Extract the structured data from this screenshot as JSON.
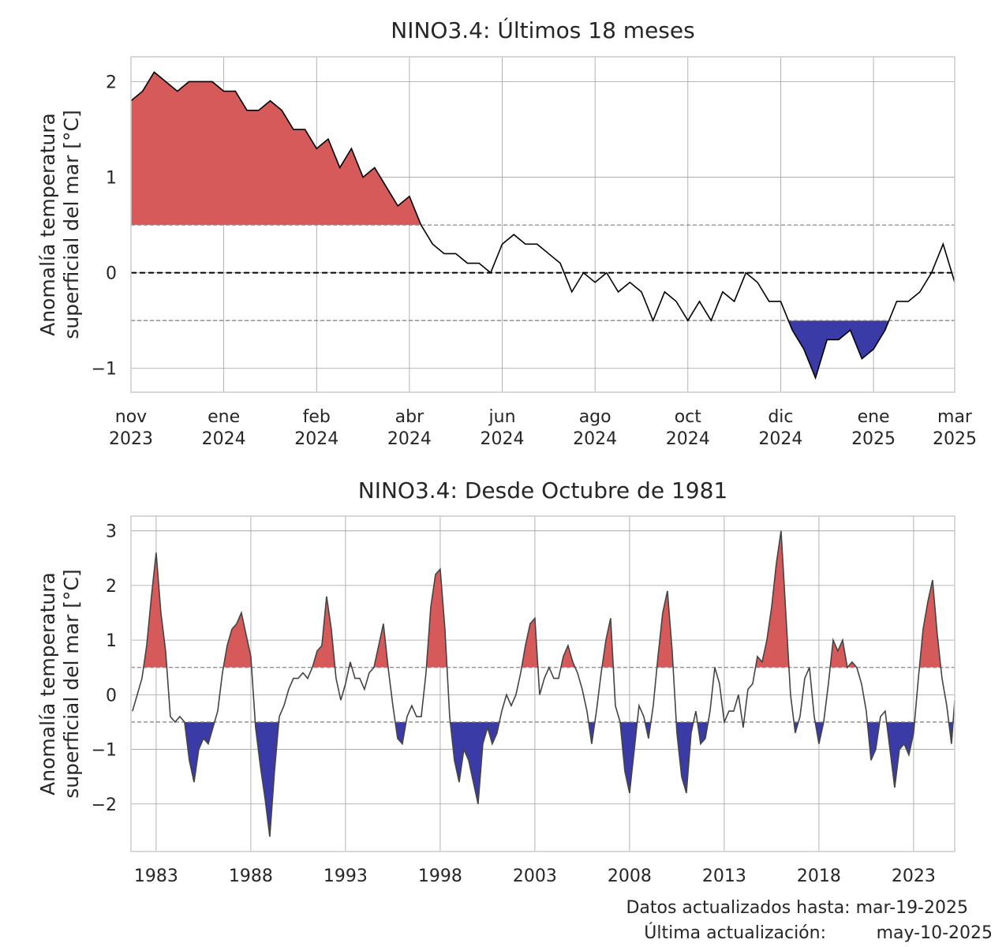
{
  "chart_data": [
    {
      "type": "line",
      "title": "NINO3.4: Últimos 18 meses",
      "ylabel": [
        "Anomalía temperatura",
        "superficial del mar [°C]"
      ],
      "x": [
        0,
        0.125,
        0.25,
        0.375,
        0.5,
        0.625,
        0.75,
        0.875,
        1,
        1.125,
        1.25,
        1.375,
        1.5,
        1.625,
        1.75,
        1.875,
        2,
        2.125,
        2.25,
        2.375,
        2.5,
        2.625,
        2.75,
        2.875,
        3,
        3.125,
        3.25,
        3.375,
        3.5,
        3.625,
        3.75,
        3.875,
        4,
        4.125,
        4.25,
        4.375,
        4.5,
        4.625,
        4.75,
        4.875,
        5,
        5.125,
        5.25,
        5.375,
        5.5,
        5.625,
        5.75,
        5.875,
        6,
        6.125,
        6.25,
        6.375,
        6.5,
        6.625,
        6.75,
        6.875,
        7,
        7.125,
        7.25,
        7.375,
        7.5,
        7.625,
        7.75,
        7.875,
        8,
        8.125,
        8.25,
        8.375,
        8.5,
        8.625,
        8.75,
        8.875
      ],
      "series": [
        {
          "color": "#000000",
          "values": [
            1.8,
            1.9,
            2.1,
            2.0,
            1.9,
            2.0,
            2.0,
            2.0,
            1.9,
            1.9,
            1.7,
            1.7,
            1.8,
            1.7,
            1.5,
            1.5,
            1.3,
            1.4,
            1.1,
            1.3,
            1.0,
            1.1,
            0.9,
            0.7,
            0.8,
            0.5,
            0.3,
            0.2,
            0.2,
            0.1,
            0.1,
            0.0,
            0.3,
            0.4,
            0.3,
            0.3,
            0.2,
            0.1,
            -0.2,
            0.0,
            -0.1,
            0.0,
            -0.2,
            -0.1,
            -0.2,
            -0.5,
            -0.2,
            -0.3,
            -0.5,
            -0.3,
            -0.5,
            -0.2,
            -0.3,
            0.0,
            -0.1,
            -0.3,
            -0.3,
            -0.6,
            -0.8,
            -1.1,
            -0.7,
            -0.7,
            -0.6,
            -0.9,
            -0.8,
            -0.6,
            -0.3,
            -0.3,
            -0.2,
            0.0,
            0.3,
            -0.1
          ]
        }
      ],
      "fills": [
        {
          "threshold": 0.5,
          "side": "above",
          "color": "#d65a5a"
        },
        {
          "threshold": -0.5,
          "side": "below",
          "color": "#3b3ba8"
        }
      ],
      "hlines": [
        {
          "value": 0.5,
          "color": "#888888"
        },
        {
          "value": -0.5,
          "color": "#888888"
        },
        {
          "value": 0,
          "color": "#000000"
        }
      ],
      "xlim": [
        0,
        8.875
      ],
      "xticks": [
        {
          "value": 0,
          "label": "nov 2023"
        },
        {
          "value": 1,
          "label": "ene 2024"
        },
        {
          "value": 2,
          "label": "feb 2024"
        },
        {
          "value": 3,
          "label": "abr 2024"
        },
        {
          "value": 4,
          "label": "jun 2024"
        },
        {
          "value": 5,
          "label": "ago 2024"
        },
        {
          "value": 6,
          "label": "oct 2024"
        },
        {
          "value": 7,
          "label": "dic 2024"
        },
        {
          "value": 8,
          "label": "ene 2025"
        },
        {
          "value": 8.875,
          "label": "mar 2025"
        }
      ],
      "ylim": [
        -1.25,
        2.26
      ],
      "yticks": [
        {
          "value": -1,
          "label": "−1"
        },
        0,
        1,
        2
      ],
      "grid": true
    },
    {
      "type": "line",
      "title": "NINO3.4: Desde Octubre de 1981",
      "ylabel": [
        "Anomalía temperatura",
        "superficial del mar [°C]"
      ],
      "x": [
        1981.75,
        1982,
        1982.25,
        1982.5,
        1982.75,
        1983,
        1983.25,
        1983.5,
        1983.75,
        1984,
        1984.25,
        1984.5,
        1984.75,
        1985,
        1985.25,
        1985.5,
        1985.75,
        1986,
        1986.25,
        1986.5,
        1986.75,
        1987,
        1987.25,
        1987.5,
        1987.75,
        1988,
        1988.25,
        1988.5,
        1988.75,
        1989,
        1989.25,
        1989.5,
        1989.75,
        1990,
        1990.25,
        1990.5,
        1990.75,
        1991,
        1991.25,
        1991.5,
        1991.75,
        1992,
        1992.25,
        1992.5,
        1992.75,
        1993,
        1993.25,
        1993.5,
        1993.75,
        1994,
        1994.25,
        1994.5,
        1994.75,
        1995,
        1995.25,
        1995.5,
        1995.75,
        1996,
        1996.25,
        1996.5,
        1996.75,
        1997,
        1997.25,
        1997.5,
        1997.75,
        1998,
        1998.25,
        1998.5,
        1998.75,
        1999,
        1999.25,
        1999.5,
        1999.75,
        2000,
        2000.25,
        2000.5,
        2000.75,
        2001,
        2001.25,
        2001.5,
        2001.75,
        2002,
        2002.25,
        2002.5,
        2002.75,
        2003,
        2003.25,
        2003.5,
        2003.75,
        2004,
        2004.25,
        2004.5,
        2004.75,
        2005,
        2005.25,
        2005.5,
        2005.75,
        2006,
        2006.25,
        2006.5,
        2006.75,
        2007,
        2007.25,
        2007.5,
        2007.75,
        2008,
        2008.25,
        2008.5,
        2008.75,
        2009,
        2009.25,
        2009.5,
        2009.75,
        2010,
        2010.25,
        2010.5,
        2010.75,
        2011,
        2011.25,
        2011.5,
        2011.75,
        2012,
        2012.25,
        2012.5,
        2012.75,
        2013,
        2013.25,
        2013.5,
        2013.75,
        2014,
        2014.25,
        2014.5,
        2014.75,
        2015,
        2015.25,
        2015.5,
        2015.75,
        2016,
        2016.25,
        2016.5,
        2016.75,
        2017,
        2017.25,
        2017.5,
        2017.75,
        2018,
        2018.25,
        2018.5,
        2018.75,
        2019,
        2019.25,
        2019.5,
        2019.75,
        2020,
        2020.25,
        2020.5,
        2020.75,
        2021,
        2021.25,
        2021.5,
        2021.75,
        2022,
        2022.25,
        2022.5,
        2022.75,
        2023,
        2023.25,
        2023.5,
        2023.75,
        2024,
        2024.25,
        2024.5,
        2024.75,
        2025,
        2025.17
      ],
      "series": [
        {
          "color": "#444444",
          "values": [
            -0.3,
            0.0,
            0.3,
            0.9,
            1.8,
            2.6,
            1.5,
            0.8,
            -0.4,
            -0.5,
            -0.4,
            -0.5,
            -1.2,
            -1.6,
            -1.0,
            -0.8,
            -0.9,
            -0.6,
            -0.3,
            0.4,
            0.9,
            1.2,
            1.3,
            1.5,
            1.1,
            0.7,
            -0.6,
            -1.3,
            -1.9,
            -2.6,
            -1.4,
            -0.4,
            -0.2,
            0.1,
            0.3,
            0.3,
            0.4,
            0.3,
            0.5,
            0.8,
            0.9,
            1.8,
            1.2,
            0.3,
            -0.1,
            0.2,
            0.6,
            0.3,
            0.3,
            0.1,
            0.4,
            0.5,
            0.9,
            1.3,
            0.5,
            -0.2,
            -0.8,
            -0.9,
            -0.4,
            -0.2,
            -0.4,
            -0.4,
            0.4,
            1.6,
            2.2,
            2.3,
            1.2,
            -0.4,
            -1.2,
            -1.6,
            -1.0,
            -1.2,
            -1.6,
            -2.0,
            -0.9,
            -0.6,
            -0.9,
            -0.7,
            -0.3,
            0.0,
            -0.2,
            0.0,
            0.4,
            0.9,
            1.3,
            1.4,
            0.0,
            0.3,
            0.5,
            0.3,
            0.3,
            0.7,
            0.9,
            0.6,
            0.4,
            0.1,
            -0.3,
            -0.9,
            -0.3,
            0.4,
            1.0,
            1.4,
            -0.2,
            -0.5,
            -1.4,
            -1.8,
            -1.0,
            -0.2,
            -0.4,
            -0.8,
            -0.2,
            0.7,
            1.5,
            1.9,
            0.8,
            -0.7,
            -1.5,
            -1.8,
            -0.7,
            -0.3,
            -0.9,
            -0.8,
            -0.3,
            0.5,
            0.2,
            -0.5,
            -0.3,
            -0.3,
            0.0,
            -0.6,
            0.1,
            0.2,
            0.7,
            0.6,
            1.0,
            1.6,
            2.4,
            3.0,
            1.5,
            0.0,
            -0.7,
            -0.4,
            0.3,
            0.5,
            -0.4,
            -0.9,
            -0.5,
            0.2,
            1.0,
            0.8,
            1.0,
            0.5,
            0.6,
            0.5,
            0.2,
            -0.3,
            -1.2,
            -1.0,
            -0.4,
            -0.3,
            -1.0,
            -1.7,
            -1.0,
            -0.9,
            -1.1,
            -0.7,
            0.3,
            1.2,
            1.7,
            2.1,
            1.1,
            0.3,
            -0.2,
            -0.9,
            -0.1
          ]
        }
      ],
      "fills": [
        {
          "threshold": 0.5,
          "side": "above",
          "color": "#d65a5a"
        },
        {
          "threshold": -0.5,
          "side": "below",
          "color": "#3b3ba8"
        }
      ],
      "hlines": [
        {
          "value": 0.5,
          "color": "#888888"
        },
        {
          "value": -0.5,
          "color": "#888888"
        }
      ],
      "xlim": [
        1981.67,
        2025.17
      ],
      "xticks": [
        1983,
        1988,
        1993,
        1998,
        2003,
        2008,
        2013,
        2018,
        2023
      ],
      "ylim": [
        -2.87,
        3.27
      ],
      "yticks": [
        {
          "value": -2,
          "label": "−2"
        },
        {
          "value": -1,
          "label": "−1"
        },
        0,
        1,
        2,
        3
      ],
      "grid": true
    }
  ],
  "footer": {
    "data_until": "Datos actualizados hasta: mar-19-2025",
    "updated_label": "Última actualización:",
    "updated_date": "may-10-2025"
  }
}
